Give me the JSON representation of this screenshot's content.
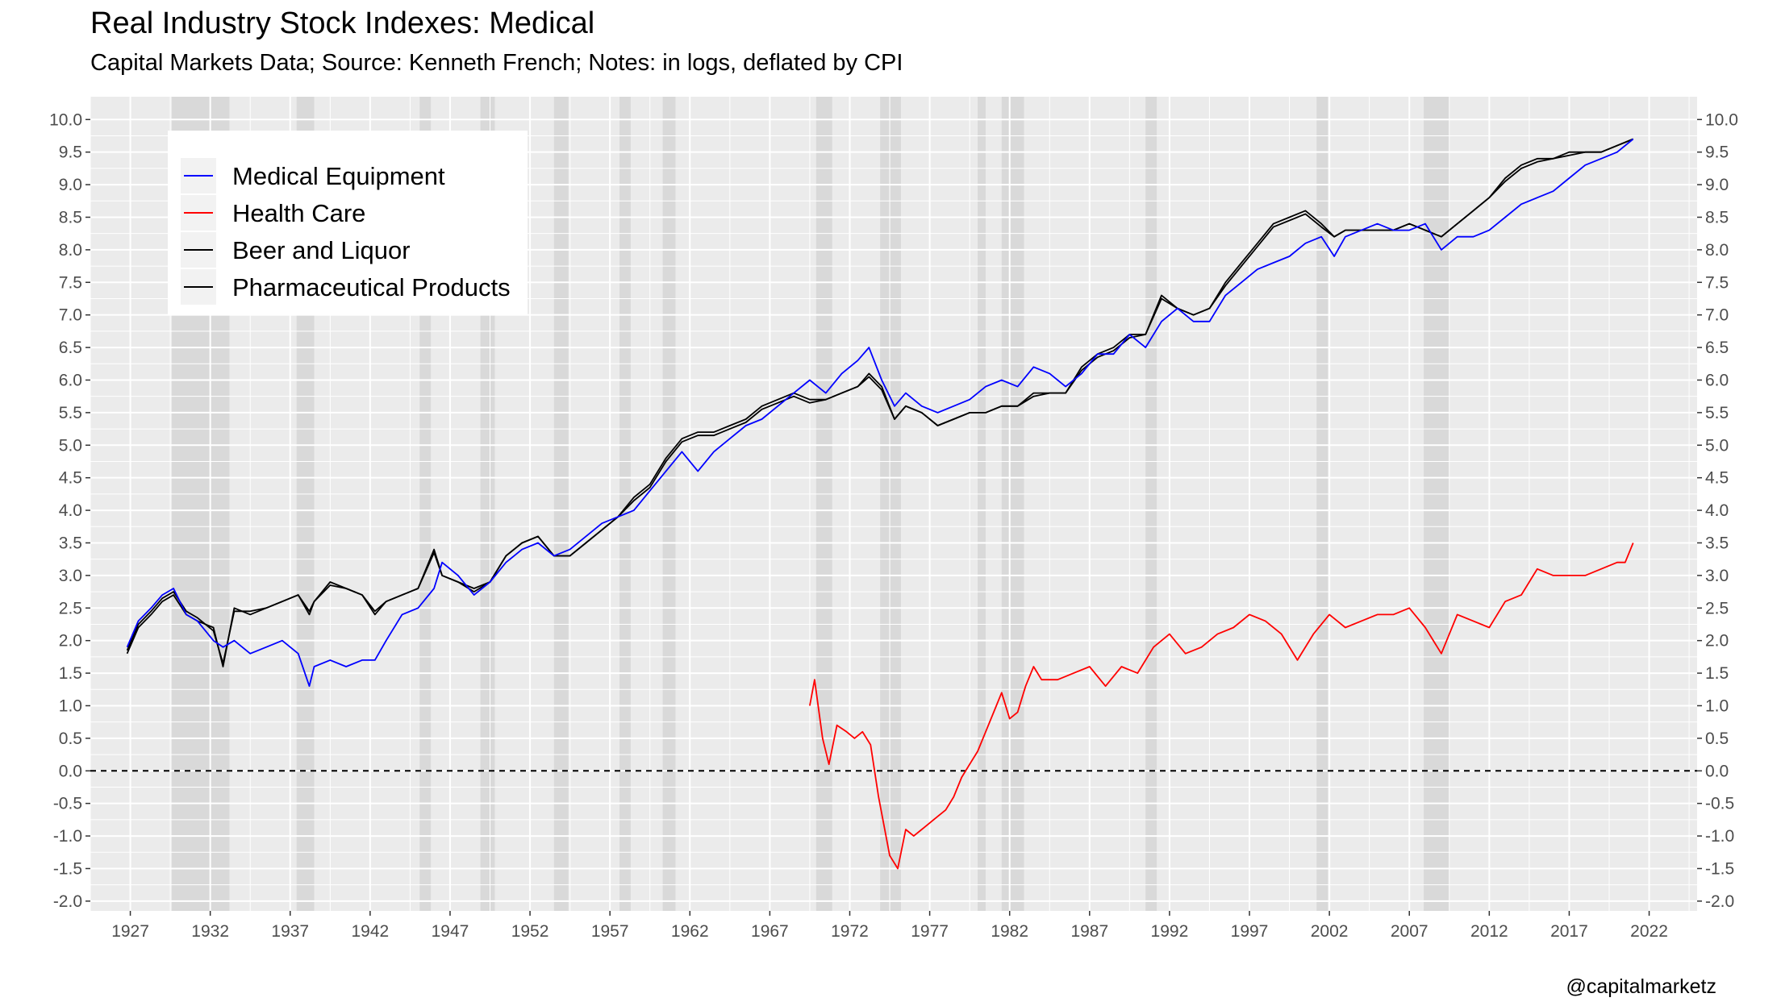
{
  "title": "Real Industry Stock Indexes: Medical",
  "subtitle": "Capital Markets Data; Source: Kenneth French; Notes: in logs, deflated by CPI",
  "caption": "@capitalmarketz",
  "chart_data": {
    "type": "line",
    "ylim": [
      -2.0,
      10.0
    ],
    "xlim": [
      1924.5,
      2025.0
    ],
    "y_ticks": [
      -2.0,
      -1.5,
      -1.0,
      -0.5,
      0.0,
      0.5,
      1.0,
      1.5,
      2.0,
      2.5,
      3.0,
      3.5,
      4.0,
      4.5,
      5.0,
      5.5,
      6.0,
      6.5,
      7.0,
      7.5,
      8.0,
      8.5,
      9.0,
      9.5,
      10.0
    ],
    "y_tick_labels": [
      "-2.0",
      "-1.5",
      "-1.0",
      "-0.5",
      "0.0",
      "0.5",
      "1.0",
      "1.5",
      "2.0",
      "2.5",
      "3.0",
      "3.5",
      "4.0",
      "4.5",
      "5.0",
      "5.5",
      "6.0",
      "6.5",
      "7.0",
      "7.5",
      "8.0",
      "8.5",
      "9.0",
      "9.5",
      "10.0"
    ],
    "x_ticks": [
      1927,
      1932,
      1937,
      1942,
      1947,
      1952,
      1957,
      1962,
      1967,
      1972,
      1977,
      1982,
      1987,
      1992,
      1997,
      2002,
      2007,
      2012,
      2017,
      2022
    ],
    "x_tick_labels": [
      "1927",
      "1932",
      "1937",
      "1942",
      "1947",
      "1952",
      "1957",
      "1962",
      "1967",
      "1972",
      "1977",
      "1982",
      "1987",
      "1992",
      "1997",
      "2002",
      "2007",
      "2012",
      "2017",
      "2022"
    ],
    "reference_line": {
      "y": 0.0,
      "style": "dashed"
    },
    "grid": true,
    "legend_position": "top-left",
    "recessions": [
      [
        1929.6,
        1933.2
      ],
      [
        1937.4,
        1938.5
      ],
      [
        1945.1,
        1945.8
      ],
      [
        1948.9,
        1949.8
      ],
      [
        1953.5,
        1954.4
      ],
      [
        1957.6,
        1958.3
      ],
      [
        1960.3,
        1961.1
      ],
      [
        1969.9,
        1970.9
      ],
      [
        1973.9,
        1975.2
      ],
      [
        1980.0,
        1980.5
      ],
      [
        1981.5,
        1982.9
      ],
      [
        1990.5,
        1991.2
      ],
      [
        2001.2,
        2001.9
      ],
      [
        2007.9,
        2009.5
      ]
    ],
    "series": [
      {
        "name": "Medical Equipment",
        "color": "#0000ff",
        "x": [
          1926.8,
          1927.5,
          1928.3,
          1929.0,
          1929.7,
          1930.5,
          1931.2,
          1932.2,
          1932.8,
          1933.5,
          1934.5,
          1935.5,
          1936.5,
          1937.5,
          1938.2,
          1938.5,
          1939.5,
          1940.5,
          1941.5,
          1942.3,
          1943.0,
          1944.0,
          1945.0,
          1946.0,
          1946.5,
          1947.5,
          1948.5,
          1949.5,
          1950.5,
          1951.5,
          1952.5,
          1953.5,
          1954.5,
          1955.5,
          1956.5,
          1957.5,
          1958.5,
          1959.5,
          1960.5,
          1961.5,
          1962.5,
          1963.5,
          1964.5,
          1965.5,
          1966.5,
          1967.5,
          1968.5,
          1969.5,
          1970.5,
          1971.5,
          1972.5,
          1973.2,
          1974.0,
          1974.8,
          1975.5,
          1976.5,
          1977.5,
          1978.5,
          1979.5,
          1980.5,
          1981.5,
          1982.5,
          1983.5,
          1984.5,
          1985.5,
          1986.5,
          1987.5,
          1988.5,
          1989.5,
          1990.5,
          1991.5,
          1992.5,
          1993.5,
          1994.5,
          1995.5,
          1996.5,
          1997.5,
          1998.5,
          1999.5,
          2000.5,
          2001.5,
          2002.3,
          2003.0,
          2004.0,
          2005.0,
          2006.0,
          2007.0,
          2008.0,
          2009.0,
          2010.0,
          2011.0,
          2012.0,
          2013.0,
          2014.0,
          2015.0,
          2016.0,
          2017.0,
          2018.0,
          2019.0,
          2020.0,
          2021.0
        ],
        "y": [
          1.9,
          2.3,
          2.5,
          2.7,
          2.8,
          2.4,
          2.3,
          2.0,
          1.9,
          2.0,
          1.8,
          1.9,
          2.0,
          1.8,
          1.3,
          1.6,
          1.7,
          1.6,
          1.7,
          1.7,
          2.0,
          2.4,
          2.5,
          2.8,
          3.2,
          3.0,
          2.7,
          2.9,
          3.2,
          3.4,
          3.5,
          3.3,
          3.4,
          3.6,
          3.8,
          3.9,
          4.0,
          4.3,
          4.6,
          4.9,
          4.6,
          4.9,
          5.1,
          5.3,
          5.4,
          5.6,
          5.8,
          6.0,
          5.8,
          6.1,
          6.3,
          6.5,
          6.0,
          5.6,
          5.8,
          5.6,
          5.5,
          5.6,
          5.7,
          5.9,
          6.0,
          5.9,
          6.2,
          6.1,
          5.9,
          6.1,
          6.4,
          6.4,
          6.7,
          6.5,
          6.9,
          7.1,
          6.9,
          6.9,
          7.3,
          7.5,
          7.7,
          7.8,
          7.9,
          8.1,
          8.2,
          7.9,
          8.2,
          8.3,
          8.4,
          8.3,
          8.3,
          8.4,
          8.0,
          8.2,
          8.2,
          8.3,
          8.5,
          8.7,
          8.8,
          8.9,
          9.1,
          9.3,
          9.4,
          9.5,
          9.7
        ]
      },
      {
        "name": "Health Care",
        "color": "#ff0000",
        "x": [
          1969.5,
          1969.8,
          1970.3,
          1970.7,
          1971.2,
          1971.8,
          1972.3,
          1972.8,
          1973.3,
          1973.8,
          1974.5,
          1975.0,
          1975.5,
          1976.0,
          1976.5,
          1977.0,
          1977.5,
          1978.0,
          1978.5,
          1979.0,
          1979.5,
          1980.0,
          1980.5,
          1981.0,
          1981.5,
          1982.0,
          1982.5,
          1983.0,
          1983.5,
          1984.0,
          1985.0,
          1986.0,
          1987.0,
          1988.0,
          1989.0,
          1990.0,
          1991.0,
          1992.0,
          1993.0,
          1994.0,
          1995.0,
          1996.0,
          1997.0,
          1998.0,
          1999.0,
          2000.0,
          2001.0,
          2002.0,
          2003.0,
          2004.0,
          2005.0,
          2006.0,
          2007.0,
          2008.0,
          2009.0,
          2010.0,
          2011.0,
          2012.0,
          2013.0,
          2014.0,
          2015.0,
          2016.0,
          2017.0,
          2018.0,
          2019.0,
          2020.0,
          2020.5,
          2021.0
        ],
        "y": [
          1.0,
          1.4,
          0.5,
          0.1,
          0.7,
          0.6,
          0.5,
          0.6,
          0.4,
          -0.4,
          -1.3,
          -1.5,
          -0.9,
          -1.0,
          -0.9,
          -0.8,
          -0.7,
          -0.6,
          -0.4,
          -0.1,
          0.1,
          0.3,
          0.6,
          0.9,
          1.2,
          0.8,
          0.9,
          1.3,
          1.6,
          1.4,
          1.4,
          1.5,
          1.6,
          1.3,
          1.6,
          1.5,
          1.9,
          2.1,
          1.8,
          1.9,
          2.1,
          2.2,
          2.4,
          2.3,
          2.1,
          1.7,
          2.1,
          2.4,
          2.2,
          2.3,
          2.4,
          2.4,
          2.5,
          2.2,
          1.8,
          2.4,
          2.3,
          2.2,
          2.6,
          2.7,
          3.1,
          3.0,
          3.0,
          3.0,
          3.1,
          3.2,
          3.2,
          3.5
        ]
      },
      {
        "name": "Beer and Liquor",
        "color": "#000000",
        "x": [
          1926.8,
          1927.5,
          1928.3,
          1929.0,
          1929.7,
          1930.5,
          1931.2,
          1932.2,
          1932.8,
          1933.5,
          1934.5,
          1935.5,
          1936.5,
          1937.5,
          1938.2,
          1938.5,
          1939.5,
          1940.5,
          1941.5,
          1942.3,
          1943.0,
          1944.0,
          1945.0,
          1946.0,
          1946.5,
          1947.5,
          1948.5,
          1949.5,
          1950.5,
          1951.5,
          1952.5,
          1953.5,
          1954.5,
          1955.5,
          1956.5,
          1957.5,
          1958.5,
          1959.5,
          1960.5,
          1961.5,
          1962.5,
          1963.5,
          1964.5,
          1965.5,
          1966.5,
          1967.5,
          1968.5,
          1969.5,
          1970.5,
          1971.5,
          1972.5,
          1973.2,
          1974.0,
          1974.8,
          1975.5,
          1976.5,
          1977.5,
          1978.5,
          1979.5,
          1980.5,
          1981.5,
          1982.5,
          1983.5,
          1984.5,
          1985.5,
          1986.5,
          1987.5,
          1988.5,
          1989.5,
          1990.5,
          1991.5,
          1992.5,
          1993.5,
          1994.5,
          1995.5,
          1996.5,
          1997.5,
          1998.5,
          1999.5,
          2000.5,
          2001.5,
          2002.3,
          2003.0,
          2004.0,
          2005.0,
          2006.0,
          2007.0,
          2008.0,
          2009.0,
          2010.0,
          2011.0,
          2012.0,
          2013.0,
          2014.0,
          2015.0,
          2016.0,
          2017.0,
          2018.0,
          2019.0,
          2020.0,
          2021.0
        ],
        "y": [
          1.8,
          2.2,
          2.4,
          2.6,
          2.7,
          2.4,
          2.3,
          2.2,
          1.6,
          2.5,
          2.4,
          2.5,
          2.6,
          2.7,
          2.4,
          2.6,
          2.9,
          2.8,
          2.7,
          2.4,
          2.6,
          2.7,
          2.8,
          3.4,
          3.0,
          2.9,
          2.8,
          2.9,
          3.3,
          3.5,
          3.6,
          3.3,
          3.3,
          3.5,
          3.7,
          3.9,
          4.2,
          4.4,
          4.8,
          5.1,
          5.2,
          5.2,
          5.3,
          5.4,
          5.6,
          5.7,
          5.8,
          5.7,
          5.7,
          5.8,
          5.9,
          6.1,
          5.9,
          5.4,
          5.6,
          5.5,
          5.3,
          5.4,
          5.5,
          5.5,
          5.6,
          5.6,
          5.8,
          5.8,
          5.8,
          6.2,
          6.4,
          6.5,
          6.7,
          6.7,
          7.3,
          7.1,
          7.0,
          7.1,
          7.5,
          7.8,
          8.1,
          8.4,
          8.5,
          8.6,
          8.4,
          8.2,
          8.3,
          8.3,
          8.3,
          8.3,
          8.4,
          8.3,
          8.2,
          8.4,
          8.6,
          8.8,
          9.1,
          9.3,
          9.4,
          9.4,
          9.5,
          9.5,
          9.5,
          9.6,
          9.7
        ]
      },
      {
        "name": "Pharmaceutical Products",
        "color": "#000000",
        "x": [
          1926.8,
          1927.5,
          1928.3,
          1929.0,
          1929.7,
          1930.5,
          1931.2,
          1932.2,
          1932.8,
          1933.5,
          1934.5,
          1935.5,
          1936.5,
          1937.5,
          1938.2,
          1938.5,
          1939.5,
          1940.5,
          1941.5,
          1942.3,
          1943.0,
          1944.0,
          1945.0,
          1946.0,
          1946.5,
          1947.5,
          1948.5,
          1949.5,
          1950.5,
          1951.5,
          1952.5,
          1953.5,
          1954.5,
          1955.5,
          1956.5,
          1957.5,
          1958.5,
          1959.5,
          1960.5,
          1961.5,
          1962.5,
          1963.5,
          1964.5,
          1965.5,
          1966.5,
          1967.5,
          1968.5,
          1969.5,
          1970.5,
          1971.5,
          1972.5,
          1973.2,
          1974.0,
          1974.8,
          1975.5,
          1976.5,
          1977.5,
          1978.5,
          1979.5,
          1980.5,
          1981.5,
          1982.5,
          1983.5,
          1984.5,
          1985.5,
          1986.5,
          1987.5,
          1988.5,
          1989.5,
          1990.5,
          1991.5,
          1992.5,
          1993.5,
          1994.5,
          1995.5,
          1996.5,
          1997.5,
          1998.5,
          1999.5,
          2000.5,
          2001.5,
          2002.3,
          2003.0,
          2004.0,
          2005.0,
          2006.0,
          2007.0,
          2008.0,
          2009.0,
          2010.0,
          2011.0,
          2012.0,
          2013.0,
          2014.0,
          2015.0,
          2016.0,
          2017.0,
          2018.0,
          2019.0,
          2020.0,
          2021.0
        ],
        "y": [
          1.85,
          2.25,
          2.45,
          2.65,
          2.75,
          2.45,
          2.35,
          2.15,
          1.65,
          2.45,
          2.45,
          2.5,
          2.6,
          2.7,
          2.45,
          2.6,
          2.85,
          2.8,
          2.7,
          2.45,
          2.6,
          2.7,
          2.8,
          3.35,
          3.0,
          2.9,
          2.75,
          2.9,
          3.3,
          3.5,
          3.6,
          3.3,
          3.3,
          3.5,
          3.7,
          3.9,
          4.15,
          4.35,
          4.75,
          5.05,
          5.15,
          5.15,
          5.25,
          5.35,
          5.55,
          5.65,
          5.75,
          5.65,
          5.7,
          5.8,
          5.9,
          6.05,
          5.85,
          5.4,
          5.6,
          5.5,
          5.3,
          5.4,
          5.5,
          5.5,
          5.6,
          5.6,
          5.75,
          5.8,
          5.8,
          6.15,
          6.35,
          6.45,
          6.65,
          6.7,
          7.25,
          7.1,
          7.0,
          7.1,
          7.45,
          7.75,
          8.05,
          8.35,
          8.45,
          8.55,
          8.35,
          8.2,
          8.3,
          8.3,
          8.3,
          8.3,
          8.4,
          8.3,
          8.2,
          8.4,
          8.6,
          8.8,
          9.05,
          9.25,
          9.35,
          9.4,
          9.45,
          9.5,
          9.5,
          9.6,
          9.7
        ]
      }
    ]
  }
}
